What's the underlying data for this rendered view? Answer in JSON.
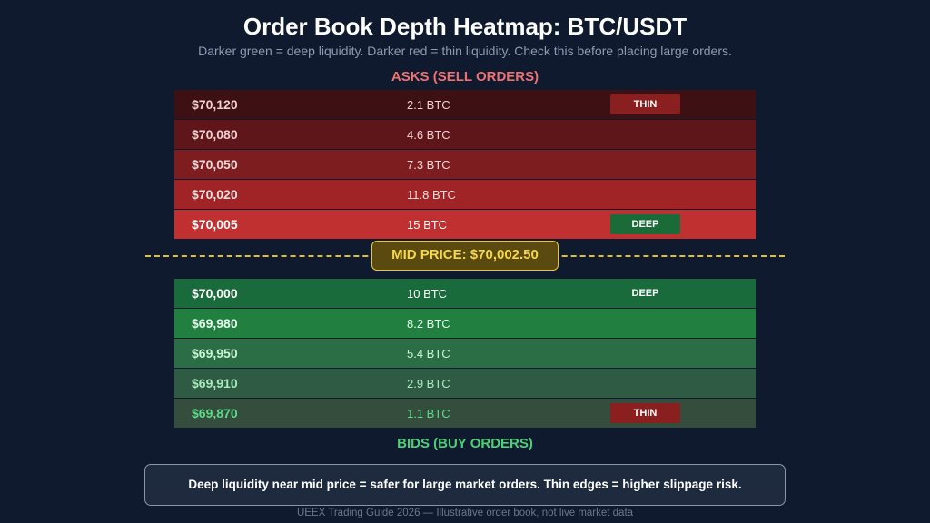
{
  "header": {
    "title": "Order Book Depth Heatmap: BTC/USDT",
    "subtitle": "Darker green = deep liquidity. Darker red = thin liquidity. Check this before placing large orders."
  },
  "asks_label": "ASKS (SELL ORDERS)",
  "bids_label": "BIDS (BUY ORDERS)",
  "mid_price_label": "MID PRICE: $70,002.50",
  "callout": "Deep liquidity near mid price = safer for large market orders. Thin edges = higher slippage risk.",
  "footer": "UEEX Trading Guide 2026 — Illustrative order book, not live market data",
  "colors": {
    "asks": [
      "#3d1014",
      "#5e161a",
      "#7e1d20",
      "#a02326",
      "#c13030"
    ],
    "bids": [
      "#1a6b3c",
      "#218040",
      "#2b6e45",
      "#2f5a43",
      "#344d3c"
    ],
    "ask_text": [
      "#f2d0d0",
      "#f2d0d0",
      "#f4d8d8",
      "#f6e0e0",
      "#ffffff"
    ],
    "bid_text": [
      "#ffffff",
      "#e8fff0",
      "#c8f5d6",
      "#a8ecbe",
      "#5fd98a"
    ],
    "mid_line": "#e0c030"
  },
  "chart_data": {
    "type": "table",
    "title": "Order Book Depth Heatmap: BTC/USDT",
    "asks": [
      {
        "price": "$70,120",
        "size": "2.1 BTC",
        "tag": "THIN"
      },
      {
        "price": "$70,080",
        "size": "4.6 BTC",
        "tag": ""
      },
      {
        "price": "$70,050",
        "size": "7.3 BTC",
        "tag": ""
      },
      {
        "price": "$70,020",
        "size": "11.8 BTC",
        "tag": ""
      },
      {
        "price": "$70,005",
        "size": "15 BTC",
        "tag": "DEEP"
      }
    ],
    "bids": [
      {
        "price": "$70,000",
        "size": "10 BTC",
        "tag": "DEEP"
      },
      {
        "price": "$69,980",
        "size": "8.2 BTC",
        "tag": ""
      },
      {
        "price": "$69,950",
        "size": "5.4 BTC",
        "tag": ""
      },
      {
        "price": "$69,910",
        "size": "2.9 BTC",
        "tag": ""
      },
      {
        "price": "$69,870",
        "size": "1.1 BTC",
        "tag": "THIN"
      }
    ],
    "mid_price": 70002.5
  }
}
